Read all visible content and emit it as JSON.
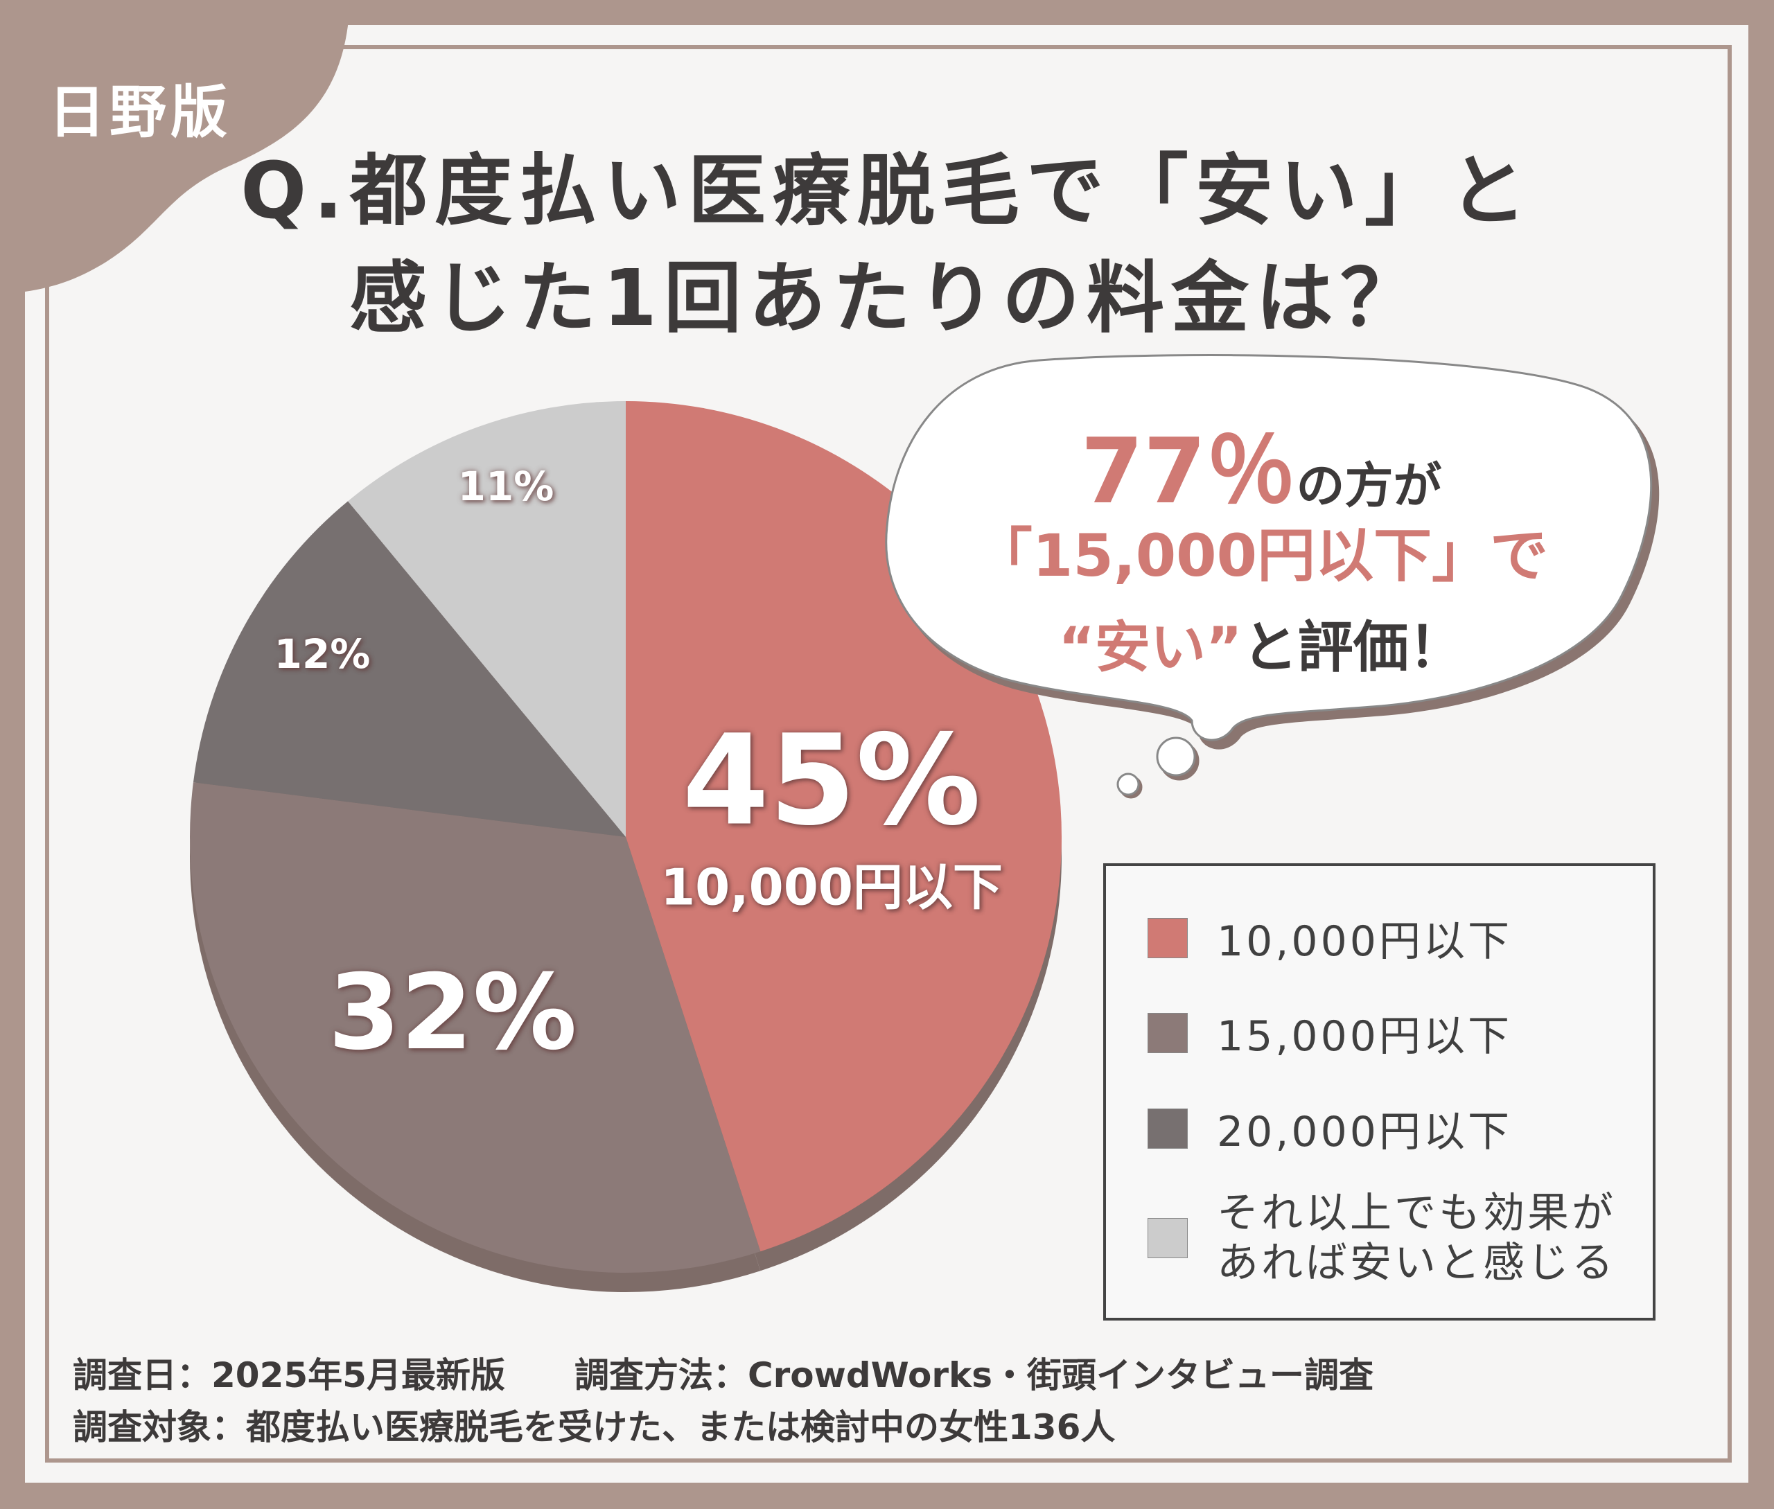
{
  "brand": "日野版",
  "title": {
    "line1": "Q.都度払い医療脱毛で「安い」と",
    "line2": "感じた1回あたりの料金は？"
  },
  "chart_data": {
    "type": "pie",
    "start": "top",
    "direction": "clockwise",
    "categories": [
      "10,000円以下",
      "15,000円以下",
      "20,000円以下",
      "それ以上でも効果があれば安いと感じる"
    ],
    "values": [
      45,
      32,
      12,
      11
    ],
    "labels": [
      "45%",
      "32%",
      "12%",
      "11%"
    ],
    "slice_sublabel": "10,000円以下",
    "colors": [
      "#d07a74",
      "#8c7a78",
      "#777070",
      "#cccccc"
    ],
    "legend_placement": "right"
  },
  "bubble": {
    "pct": "77％",
    "line1_rest": "の方が",
    "line2": "「15,000円以下」で",
    "line3_a": "“安い”",
    "line3_b": "と評価！"
  },
  "legend": {
    "items": [
      "10,000円以下",
      "15,000円以下",
      "20,000円以下"
    ],
    "last_line1": "それ以上でも効果が",
    "last_line2": "あれば安いと感じる"
  },
  "footer": {
    "line1": "調査日：2025年5月最新版　　調査方法：CrowdWorks・街頭インタビュー調査",
    "line2": "調査対象：都度払い医療脱毛を受けた、または検討中の女性136人"
  }
}
